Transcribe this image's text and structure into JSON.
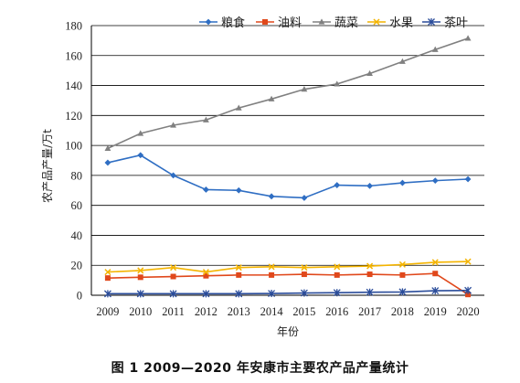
{
  "chart_data": {
    "type": "line",
    "x": [
      "2009",
      "2010",
      "2011",
      "2012",
      "2013",
      "2014",
      "2015",
      "2016",
      "2017",
      "2018",
      "2019",
      "2020"
    ],
    "ylim": [
      0,
      180
    ],
    "yticks": [
      0,
      20,
      40,
      60,
      80,
      100,
      120,
      140,
      160,
      180
    ],
    "grid": "horizontal",
    "legend_position": "top",
    "xlabel": "年份",
    "ylabel": "农产品产量/万t",
    "series": [
      {
        "name": "粮食",
        "color": "#2f6ec3",
        "marker": "diamond",
        "values": [
          88.5,
          93.5,
          80,
          70.5,
          70,
          66,
          65,
          73.5,
          73,
          75,
          76.5,
          77.5
        ]
      },
      {
        "name": "油料",
        "color": "#e0481b",
        "marker": "square",
        "values": [
          11.5,
          12,
          12.5,
          13,
          13.5,
          13.5,
          14,
          13.5,
          14,
          13.5,
          14.5,
          0.5
        ]
      },
      {
        "name": "蔬菜",
        "color": "#808080",
        "marker": "triangle",
        "values": [
          98,
          108,
          113.5,
          117,
          125,
          131,
          137.5,
          141,
          148,
          156,
          164,
          171.5
        ]
      },
      {
        "name": "水果",
        "color": "#f4b400",
        "marker": "x",
        "values": [
          15.5,
          16.5,
          18.5,
          15.5,
          18.5,
          19,
          18.5,
          19,
          19.5,
          20.5,
          22,
          22.5
        ]
      },
      {
        "name": "茶叶",
        "color": "#2a4c9a",
        "marker": "star",
        "values": [
          1,
          1,
          1,
          1,
          1,
          1.2,
          1.5,
          1.7,
          2,
          2.2,
          3,
          3.2
        ]
      }
    ]
  },
  "caption": "图 1    2009—2020 年安康市主要农产品产量统计"
}
